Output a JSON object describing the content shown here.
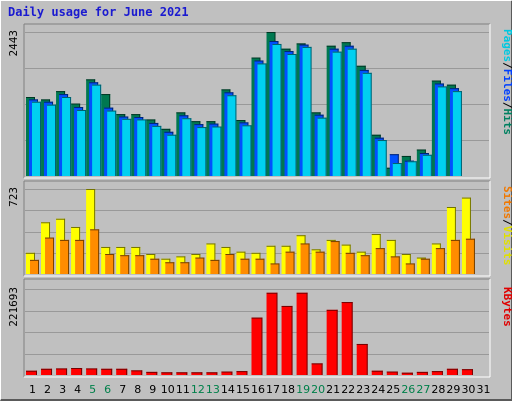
{
  "chart_data": {
    "type": "bar",
    "title": "Daily usage for June 2021",
    "categories": [
      "1",
      "2",
      "3",
      "4",
      "5",
      "6",
      "7",
      "8",
      "9",
      "10",
      "11",
      "12",
      "13",
      "14",
      "15",
      "16",
      "17",
      "18",
      "19",
      "20",
      "21",
      "22",
      "23",
      "24",
      "25",
      "26",
      "27",
      "28",
      "29",
      "30",
      "31"
    ],
    "weekend_days": [
      "5",
      "6",
      "12",
      "13",
      "19",
      "20",
      "26",
      "27"
    ],
    "panels": [
      {
        "id": "hits",
        "max_label": "2443",
        "ylim": [
          0,
          2443
        ],
        "axis_label_parts": [
          {
            "text": "Pages",
            "color": "#00c8e0"
          },
          {
            "text": "/",
            "color": "#000000"
          },
          {
            "text": "Files",
            "color": "#0040ff"
          },
          {
            "text": "/",
            "color": "#000000"
          },
          {
            "text": "Hits",
            "color": "#008060"
          }
        ],
        "series": [
          {
            "name": "Hits",
            "color": "#007850",
            "values": [
              1340,
              1300,
              1440,
              1230,
              1640,
              1390,
              1050,
              1050,
              960,
              800,
              1080,
              930,
              930,
              1470,
              950,
              2010,
              2443,
              2160,
              2250,
              1080,
              2210,
              2270,
              1870,
              700,
              140,
              340,
              450,
              1620,
              1550,
              0,
              0
            ]
          },
          {
            "name": "Files",
            "color": "#0050ff",
            "values": [
              1300,
              1260,
              1390,
              1170,
              1590,
              1160,
              1010,
              1000,
              900,
              750,
              1030,
              880,
              890,
              1420,
              910,
              1960,
              2290,
              2120,
              2230,
              1040,
              2160,
              2210,
              1800,
              650,
              370,
              260,
              390,
              1570,
              1490,
              0,
              0
            ]
          },
          {
            "name": "Pages",
            "color": "#00d0f0",
            "values": [
              1260,
              1210,
              1340,
              1120,
              1550,
              1110,
              970,
              960,
              850,
              700,
              980,
              830,
              840,
              1370,
              860,
              1910,
              2240,
              2070,
              2190,
              990,
              2110,
              2160,
              1750,
              610,
              220,
              250,
              360,
              1520,
              1440,
              0,
              0
            ]
          }
        ]
      },
      {
        "id": "visits",
        "max_label": "723",
        "ylim": [
          0,
          723
        ],
        "axis_label_parts": [
          {
            "text": "Sites",
            "color": "#f07800"
          },
          {
            "text": "/",
            "color": "#000000"
          },
          {
            "text": "Visits",
            "color": "#e0e000"
          }
        ],
        "series": [
          {
            "name": "Visits",
            "color": "#ffff00",
            "values": [
              180,
              440,
              470,
              400,
              723,
              230,
              230,
              230,
              170,
              130,
              150,
              170,
              260,
              230,
              190,
              180,
              240,
              240,
              330,
              210,
              290,
              250,
              190,
              340,
              290,
              170,
              140,
              260,
              570,
              650,
              0
            ]
          },
          {
            "name": "Sites",
            "color": "#ff8c00",
            "values": [
              120,
              310,
              290,
              290,
              380,
              170,
              160,
              160,
              130,
              100,
              100,
              140,
              120,
              170,
              130,
              130,
              90,
              190,
              260,
              190,
              280,
              180,
              160,
              220,
              150,
              90,
              130,
              220,
              290,
              300,
              0
            ]
          }
        ]
      },
      {
        "id": "kbytes",
        "max_label": "221693",
        "ylim": [
          0,
          221693
        ],
        "axis_label_parts": [
          {
            "text": "KBytes",
            "color": "#e00000"
          }
        ],
        "series": [
          {
            "name": "KBytes",
            "color": "#ff0000",
            "values": [
              11000,
              16000,
              17000,
              18000,
              17000,
              16000,
              16000,
              12000,
              8000,
              7000,
              7000,
              7000,
              7000,
              9000,
              10000,
              148000,
              212000,
              178000,
              212000,
              30000,
              168000,
              188000,
              80000,
              11000,
              9000,
              6000,
              8000,
              10000,
              16000,
              15000,
              0
            ]
          }
        ]
      }
    ]
  }
}
